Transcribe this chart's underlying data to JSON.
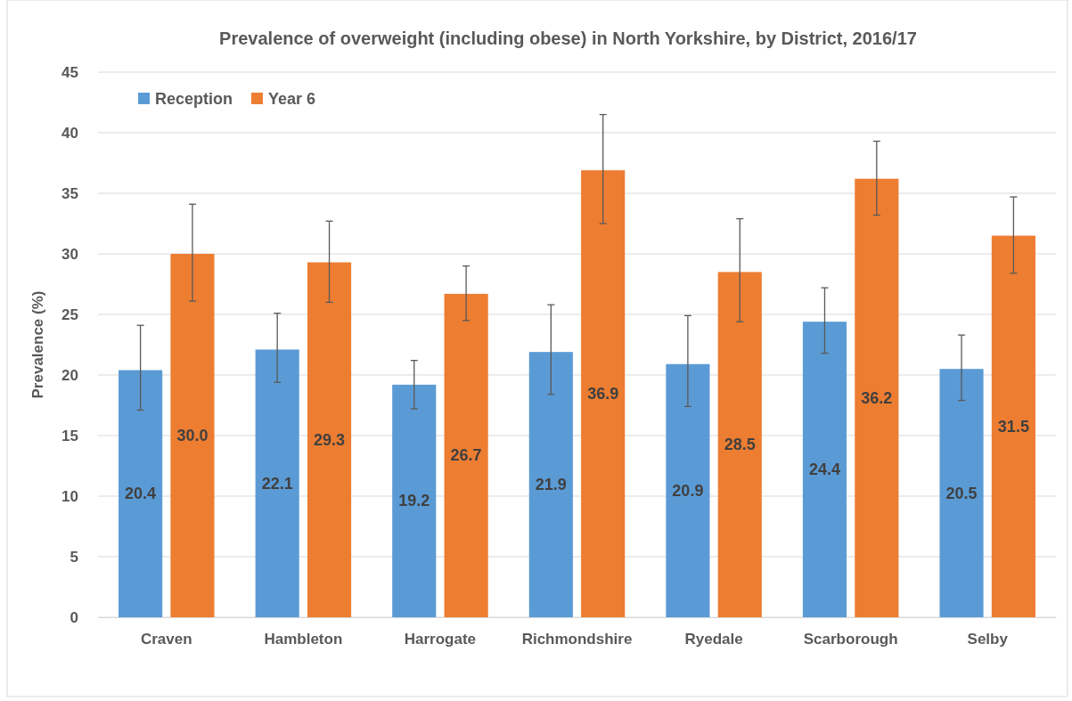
{
  "chart_data": {
    "type": "bar",
    "title": "Prevalence of overweight (including obese) in North Yorkshire, by District, 2016/17",
    "ylabel": "Prevalence (%)",
    "categories": [
      "Craven",
      "Hambleton",
      "Harrogate",
      "Richmondshire",
      "Ryedale",
      "Scarborough",
      "Selby"
    ],
    "series": [
      {
        "name": "Reception",
        "color": "#5b9bd5",
        "values": [
          20.4,
          22.1,
          19.2,
          21.9,
          20.9,
          24.4,
          20.5
        ],
        "value_labels": [
          "20.4",
          "22.1",
          "19.2",
          "21.9",
          "20.9",
          "24.4",
          "20.5"
        ],
        "errors": [
          [
            17.1,
            24.1
          ],
          [
            19.4,
            25.1
          ],
          [
            17.2,
            21.2
          ],
          [
            18.4,
            25.8
          ],
          [
            17.4,
            24.9
          ],
          [
            21.8,
            27.2
          ],
          [
            17.9,
            23.3
          ]
        ]
      },
      {
        "name": "Year 6",
        "color": "#ed7d31",
        "values": [
          30.0,
          29.3,
          26.7,
          36.9,
          28.5,
          36.2,
          31.5
        ],
        "value_labels": [
          "30.0",
          "29.3",
          "26.7",
          "36.9",
          "28.5",
          "36.2",
          "31.5"
        ],
        "errors": [
          [
            26.1,
            34.1
          ],
          [
            26.0,
            32.7
          ],
          [
            24.5,
            29.0
          ],
          [
            32.5,
            41.5
          ],
          [
            24.4,
            32.9
          ],
          [
            33.2,
            39.3
          ],
          [
            28.4,
            34.7
          ]
        ]
      }
    ],
    "ylim": [
      0,
      45
    ],
    "yticks": [
      0,
      5,
      10,
      15,
      20,
      25,
      30,
      35,
      40,
      45
    ],
    "grid": "y",
    "legend": "top left"
  }
}
